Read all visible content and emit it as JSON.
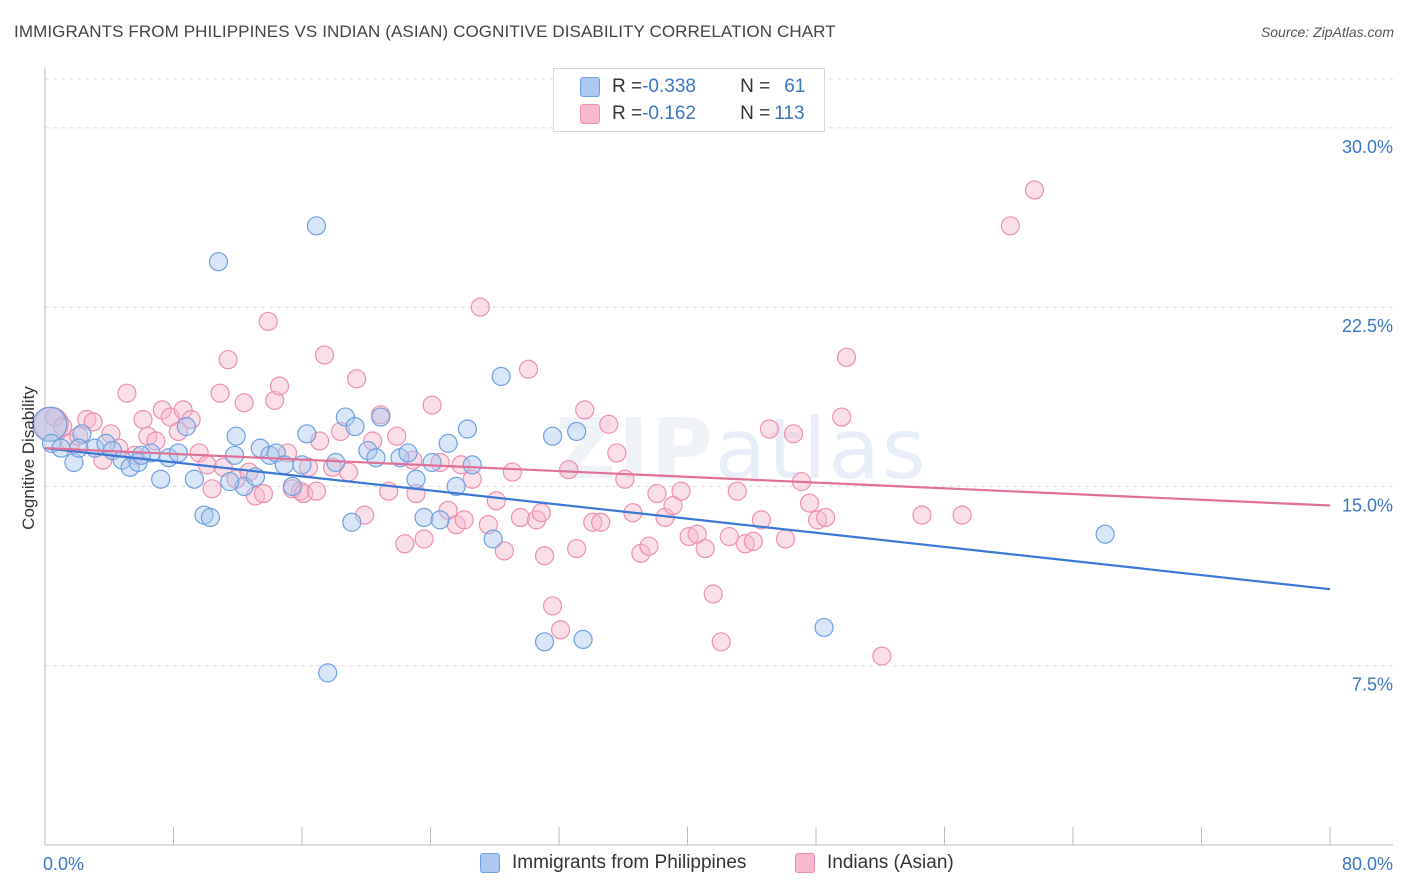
{
  "header": {
    "title": "IMMIGRANTS FROM PHILIPPINES VS INDIAN (ASIAN) COGNITIVE DISABILITY CORRELATION CHART",
    "source": "Source: ZipAtlas.com"
  },
  "watermark": {
    "zip": "ZIP",
    "atlas": "atlas"
  },
  "legend_top": {
    "rows": [
      {
        "r_label": "R = ",
        "r_value": "-0.338",
        "n_label": "N = ",
        "n_value": "61",
        "color": "#aac8f0"
      },
      {
        "r_label": "R = ",
        "r_value": "-0.162",
        "n_label": "N = ",
        "n_value": "113",
        "color": "#f6b9cd"
      }
    ]
  },
  "legend_bottom": [
    {
      "label": "Immigrants from Philippines",
      "color": "#aac8f0"
    },
    {
      "label": "Indians (Asian)",
      "color": "#f6b9cd"
    }
  ],
  "chart_data": {
    "type": "scatter",
    "title": "IMMIGRANTS FROM PHILIPPINES VS INDIAN (ASIAN) COGNITIVE DISABILITY CORRELATION CHART",
    "xlabel": "",
    "ylabel": "Cognitive Disability",
    "xlim": [
      0,
      80
    ],
    "ylim": [
      0,
      32
    ],
    "x_tick_labels": [
      "0.0%",
      "80.0%"
    ],
    "y_ticks": [
      7.5,
      15.0,
      22.5,
      30.0
    ],
    "y_tick_labels": [
      "7.5%",
      "15.0%",
      "22.5%",
      "30.0%"
    ],
    "grid": "horizontal dashed",
    "legend_position": "top-center and bottom",
    "series": [
      {
        "name": "Immigrants from Philippines",
        "color": "#6fa0e0",
        "fill": "#aac8f0",
        "trend": {
          "x": [
            0,
            80
          ],
          "y": [
            16.6,
            10.7
          ],
          "color": "#3a78d8"
        },
        "points": [
          [
            0.3,
            17.6
          ],
          [
            0.4,
            16.8
          ],
          [
            1.0,
            16.6
          ],
          [
            1.8,
            16.0
          ],
          [
            2.3,
            17.2
          ],
          [
            3.1,
            16.6
          ],
          [
            3.8,
            16.8
          ],
          [
            4.2,
            16.5
          ],
          [
            4.8,
            16.1
          ],
          [
            5.3,
            15.8
          ],
          [
            5.8,
            16.0
          ],
          [
            6.6,
            16.4
          ],
          [
            7.2,
            15.3
          ],
          [
            7.7,
            16.2
          ],
          [
            8.3,
            16.4
          ],
          [
            8.8,
            17.5
          ],
          [
            9.3,
            15.3
          ],
          [
            9.9,
            13.8
          ],
          [
            10.3,
            13.7
          ],
          [
            10.8,
            24.4
          ],
          [
            11.8,
            16.3
          ],
          [
            11.9,
            17.1
          ],
          [
            12.4,
            15.0
          ],
          [
            13.4,
            16.6
          ],
          [
            13.1,
            15.4
          ],
          [
            14.0,
            16.3
          ],
          [
            14.4,
            16.4
          ],
          [
            14.9,
            15.9
          ],
          [
            15.4,
            15.0
          ],
          [
            16.0,
            15.9
          ],
          [
            16.3,
            17.2
          ],
          [
            16.9,
            25.9
          ],
          [
            17.6,
            7.2
          ],
          [
            18.1,
            16.0
          ],
          [
            18.7,
            17.9
          ],
          [
            19.1,
            13.5
          ],
          [
            19.3,
            17.5
          ],
          [
            20.1,
            16.5
          ],
          [
            20.6,
            16.2
          ],
          [
            20.9,
            17.9
          ],
          [
            22.1,
            16.2
          ],
          [
            22.6,
            16.4
          ],
          [
            23.1,
            15.3
          ],
          [
            23.6,
            13.7
          ],
          [
            24.1,
            16.0
          ],
          [
            24.6,
            13.6
          ],
          [
            25.1,
            16.8
          ],
          [
            25.6,
            15.0
          ],
          [
            26.3,
            17.4
          ],
          [
            26.6,
            15.9
          ],
          [
            27.9,
            12.8
          ],
          [
            28.4,
            19.6
          ],
          [
            31.1,
            8.5
          ],
          [
            31.6,
            17.1
          ],
          [
            33.5,
            8.6
          ],
          [
            48.5,
            9.1
          ],
          [
            66.0,
            13.0
          ],
          [
            33.1,
            17.3
          ],
          [
            6.0,
            16.3
          ],
          [
            2.1,
            16.6
          ],
          [
            11.5,
            15.2
          ]
        ]
      },
      {
        "name": "Indians (Asian)",
        "color": "#ee8fb0",
        "fill": "#f6b9cd",
        "trend": {
          "x": [
            0,
            80
          ],
          "y": [
            16.6,
            14.2
          ],
          "color": "#e07098"
        },
        "points": [
          [
            0.4,
            17.6
          ],
          [
            0.6,
            17.9
          ],
          [
            1.1,
            17.5
          ],
          [
            1.6,
            16.8
          ],
          [
            2.1,
            17.1
          ],
          [
            2.6,
            17.8
          ],
          [
            3.0,
            17.7
          ],
          [
            3.6,
            16.1
          ],
          [
            4.1,
            17.2
          ],
          [
            4.6,
            16.6
          ],
          [
            5.1,
            18.9
          ],
          [
            5.6,
            16.3
          ],
          [
            6.1,
            17.8
          ],
          [
            6.4,
            17.1
          ],
          [
            6.9,
            16.9
          ],
          [
            7.3,
            18.2
          ],
          [
            7.8,
            17.9
          ],
          [
            8.3,
            17.3
          ],
          [
            8.6,
            18.2
          ],
          [
            9.1,
            17.8
          ],
          [
            9.6,
            16.4
          ],
          [
            10.1,
            15.9
          ],
          [
            10.4,
            14.9
          ],
          [
            10.9,
            18.9
          ],
          [
            11.1,
            15.8
          ],
          [
            11.4,
            20.3
          ],
          [
            11.9,
            15.3
          ],
          [
            12.4,
            18.5
          ],
          [
            12.7,
            15.6
          ],
          [
            13.1,
            14.6
          ],
          [
            13.6,
            14.7
          ],
          [
            13.9,
            21.9
          ],
          [
            14.3,
            18.6
          ],
          [
            14.6,
            19.2
          ],
          [
            15.1,
            16.4
          ],
          [
            15.4,
            14.9
          ],
          [
            15.9,
            14.8
          ],
          [
            16.1,
            14.7
          ],
          [
            16.4,
            15.8
          ],
          [
            16.9,
            14.8
          ],
          [
            17.4,
            20.5
          ],
          [
            17.9,
            15.8
          ],
          [
            18.4,
            17.3
          ],
          [
            18.9,
            15.6
          ],
          [
            19.4,
            19.5
          ],
          [
            19.9,
            13.8
          ],
          [
            20.4,
            16.9
          ],
          [
            20.9,
            18.0
          ],
          [
            21.4,
            14.8
          ],
          [
            21.9,
            17.1
          ],
          [
            22.4,
            12.6
          ],
          [
            23.1,
            14.7
          ],
          [
            23.6,
            12.8
          ],
          [
            24.1,
            18.4
          ],
          [
            24.6,
            16.0
          ],
          [
            25.1,
            14.0
          ],
          [
            25.6,
            13.4
          ],
          [
            26.1,
            13.6
          ],
          [
            26.6,
            15.3
          ],
          [
            27.1,
            22.5
          ],
          [
            27.6,
            13.4
          ],
          [
            28.1,
            14.4
          ],
          [
            28.6,
            12.3
          ],
          [
            29.1,
            15.6
          ],
          [
            29.6,
            13.7
          ],
          [
            30.1,
            19.9
          ],
          [
            30.6,
            13.6
          ],
          [
            31.1,
            12.1
          ],
          [
            31.6,
            10.0
          ],
          [
            32.1,
            9.0
          ],
          [
            32.6,
            15.7
          ],
          [
            33.1,
            12.4
          ],
          [
            33.6,
            18.2
          ],
          [
            34.1,
            13.5
          ],
          [
            34.6,
            13.5
          ],
          [
            35.1,
            17.6
          ],
          [
            35.6,
            16.4
          ],
          [
            36.6,
            13.9
          ],
          [
            37.1,
            12.2
          ],
          [
            37.6,
            12.5
          ],
          [
            38.1,
            14.7
          ],
          [
            38.6,
            13.7
          ],
          [
            39.1,
            14.2
          ],
          [
            39.6,
            14.8
          ],
          [
            40.1,
            12.9
          ],
          [
            40.6,
            13.0
          ],
          [
            41.1,
            12.4
          ],
          [
            41.6,
            10.5
          ],
          [
            42.1,
            8.5
          ],
          [
            43.1,
            14.8
          ],
          [
            43.6,
            12.6
          ],
          [
            44.1,
            12.7
          ],
          [
            44.6,
            13.6
          ],
          [
            45.1,
            17.4
          ],
          [
            46.1,
            12.8
          ],
          [
            46.6,
            17.2
          ],
          [
            47.1,
            15.2
          ],
          [
            47.6,
            14.3
          ],
          [
            48.1,
            13.6
          ],
          [
            48.6,
            13.7
          ],
          [
            49.6,
            17.9
          ],
          [
            49.9,
            20.4
          ],
          [
            52.1,
            7.9
          ],
          [
            54.6,
            13.8
          ],
          [
            57.1,
            13.8
          ],
          [
            60.1,
            25.9
          ],
          [
            61.6,
            27.4
          ],
          [
            17.1,
            16.9
          ],
          [
            22.9,
            16.1
          ],
          [
            30.9,
            13.9
          ],
          [
            36.1,
            15.3
          ],
          [
            42.6,
            12.9
          ],
          [
            25.9,
            15.9
          ]
        ]
      }
    ]
  }
}
